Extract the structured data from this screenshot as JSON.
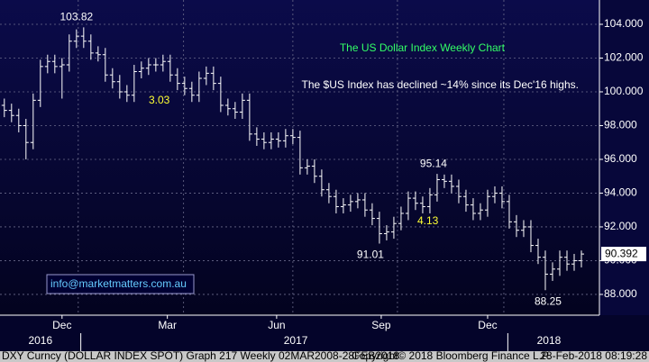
{
  "chart_data": {
    "type": "ohlc",
    "title": "The US Dollar Index Weekly Chart",
    "subtitle": "The $US Index has declined ~14% since its Dec'16 highs.",
    "watermark": "info@marketmatters.com.au",
    "annotations": [
      "3.03",
      "4.13"
    ],
    "footer": [
      "DXY Curncy (DOLLAR INDEX SPOT) Graph 217  Weekly 02MAR2008-28FEB2018",
      "Copyright© 2018 Bloomberg Finance L.P.",
      "28-Feb-2018 08:19:28"
    ],
    "color": "#ffffff",
    "open": [
      99.2,
      98.9,
      98.6,
      98.0,
      97.0,
      99.5,
      101.5,
      101.8,
      101.5,
      101.6,
      103.0,
      103.3,
      103.0,
      102.3,
      102.2,
      101.0,
      100.6,
      100.0,
      99.8,
      101.2,
      101.4,
      101.6,
      101.6,
      101.8,
      101.0,
      100.5,
      100.2,
      99.8,
      100.8,
      101.1,
      100.5,
      99.2,
      99.0,
      98.8,
      99.5,
      97.5,
      97.2,
      97.0,
      97.2,
      97.1,
      97.4,
      97.3,
      95.5,
      95.6,
      95.0,
      94.2,
      93.8,
      93.2,
      93.3,
      93.5,
      93.6,
      93.0,
      92.5,
      91.6,
      91.7,
      92.2,
      92.8,
      93.7,
      93.4,
      93.2,
      93.9,
      94.8,
      94.7,
      94.4,
      93.8,
      93.3,
      92.8,
      93.0,
      93.8,
      94.0,
      93.5,
      92.3,
      91.8,
      92.0,
      90.9,
      90.2,
      89.2,
      89.5,
      90.2,
      89.8,
      90.0
    ],
    "high": [
      99.6,
      99.3,
      99.0,
      98.4,
      99.9,
      101.9,
      102.2,
      102.2,
      102.0,
      103.4,
      103.7,
      103.82,
      103.4,
      102.7,
      102.6,
      101.4,
      101.0,
      100.4,
      101.6,
      101.8,
      102.0,
      102.0,
      102.2,
      102.2,
      101.4,
      100.9,
      100.6,
      101.2,
      101.5,
      101.5,
      100.9,
      99.6,
      99.4,
      99.9,
      99.9,
      97.9,
      97.6,
      97.6,
      97.6,
      97.8,
      97.8,
      97.7,
      96.0,
      96.0,
      95.4,
      94.6,
      94.2,
      93.7,
      93.9,
      94.0,
      94.0,
      93.4,
      92.9,
      92.1,
      92.6,
      93.2,
      94.1,
      94.1,
      93.8,
      94.3,
      95.14,
      95.1,
      95.1,
      94.8,
      94.2,
      93.7,
      93.4,
      94.2,
      94.4,
      94.4,
      93.9,
      92.7,
      92.4,
      92.4,
      91.3,
      90.6,
      89.9,
      90.6,
      90.6,
      90.4,
      90.6
    ],
    "low": [
      98.5,
      98.2,
      97.6,
      96.0,
      96.6,
      99.1,
      101.1,
      101.1,
      99.6,
      101.2,
      102.6,
      102.6,
      101.9,
      101.8,
      100.6,
      100.2,
      99.6,
      99.4,
      99.4,
      100.8,
      101.0,
      101.2,
      101.2,
      100.6,
      100.1,
      99.8,
      99.4,
      99.4,
      100.4,
      100.1,
      98.8,
      98.6,
      98.4,
      98.4,
      97.1,
      96.8,
      96.6,
      96.6,
      96.7,
      96.7,
      96.9,
      95.1,
      95.1,
      94.6,
      93.8,
      93.4,
      92.8,
      92.8,
      92.9,
      93.1,
      92.6,
      92.1,
      91.01,
      91.2,
      91.3,
      91.8,
      92.4,
      93.0,
      92.8,
      92.8,
      93.5,
      94.3,
      94.0,
      93.4,
      92.9,
      92.4,
      92.4,
      92.6,
      93.4,
      93.1,
      91.9,
      91.4,
      91.4,
      90.5,
      89.8,
      88.25,
      88.8,
      89.1,
      89.4,
      89.4,
      89.6
    ],
    "close": [
      98.9,
      98.6,
      98.0,
      97.0,
      99.5,
      101.5,
      101.8,
      101.5,
      101.6,
      103.0,
      103.3,
      103.0,
      102.3,
      102.2,
      101.0,
      100.6,
      100.0,
      99.8,
      101.2,
      101.4,
      101.6,
      101.6,
      101.8,
      101.0,
      100.5,
      100.2,
      99.8,
      100.8,
      101.1,
      100.5,
      99.2,
      99.0,
      98.8,
      99.5,
      97.5,
      97.2,
      97.0,
      97.2,
      97.1,
      97.4,
      97.3,
      95.5,
      95.6,
      95.0,
      94.2,
      93.8,
      93.2,
      93.3,
      93.5,
      93.6,
      93.0,
      92.5,
      91.6,
      91.7,
      92.2,
      92.8,
      93.7,
      93.4,
      93.2,
      93.9,
      94.8,
      94.7,
      94.4,
      93.8,
      93.3,
      92.8,
      93.0,
      93.8,
      94.0,
      93.5,
      92.3,
      91.8,
      92.0,
      90.9,
      90.2,
      89.2,
      89.5,
      90.2,
      89.8,
      90.0,
      90.392
    ],
    "xticks": [
      {
        "value": 8,
        "label": "Dec"
      },
      {
        "value": 22.6,
        "label": "Mar"
      },
      {
        "value": 37.75,
        "label": "Jun"
      },
      {
        "value": 52.25,
        "label": "Sep"
      },
      {
        "value": 67,
        "label": "Dec"
      }
    ],
    "years": [
      {
        "value": 5,
        "label": "2016"
      },
      {
        "value": 40.4,
        "label": "2017"
      },
      {
        "value": 75.5,
        "label": "2018"
      }
    ],
    "xlim": [
      -0.6,
      82.5
    ],
    "ylim": [
      86.77,
      105.44
    ],
    "yticks": [
      {
        "value": 88,
        "label": "88.000"
      },
      {
        "value": 90,
        "label": "90.000"
      },
      {
        "value": 92,
        "label": "92.000"
      },
      {
        "value": 94,
        "label": "94.000"
      },
      {
        "value": 96,
        "label": "96.000"
      },
      {
        "value": 98,
        "label": "98.000"
      },
      {
        "value": 100,
        "label": "100.000"
      },
      {
        "value": 102,
        "label": "102.000"
      },
      {
        "value": 104,
        "label": "104.000"
      }
    ],
    "grid": true
  }
}
